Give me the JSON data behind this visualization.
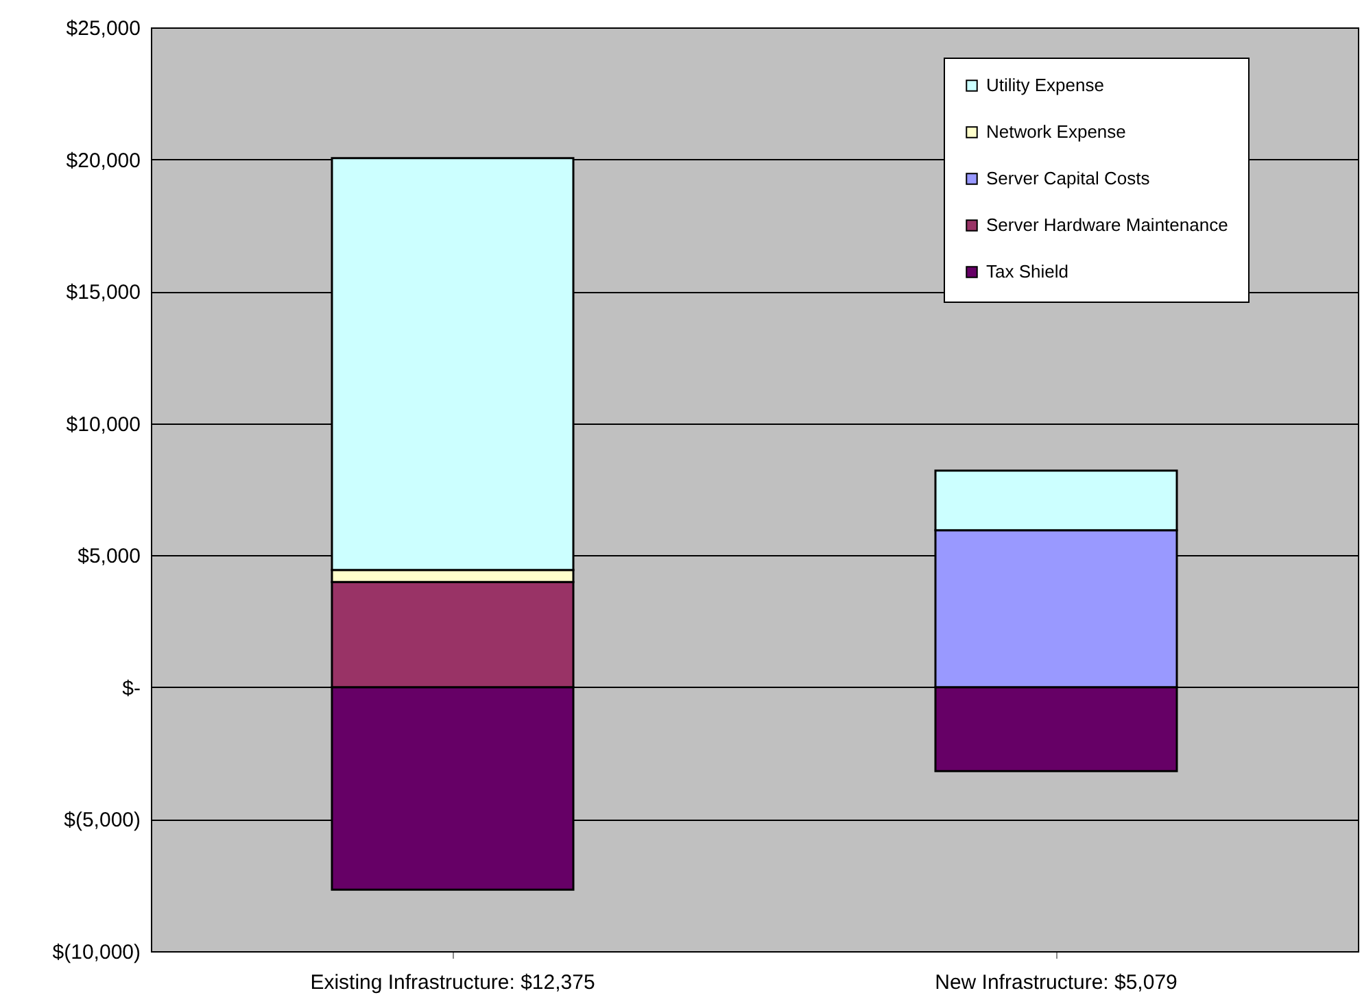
{
  "chart_data": {
    "type": "bar",
    "stacked": true,
    "categories": [
      "Existing Infrastructure:  $12,375",
      "New Infrastructure:   $5,079"
    ],
    "series": [
      {
        "name": "Tax Shield",
        "color": "#660066",
        "values": [
          -7670,
          -3180
        ]
      },
      {
        "name": "Server Hardware Maintenance",
        "color": "#993366",
        "values": [
          3990,
          null
        ]
      },
      {
        "name": "Server Capital Costs",
        "color": "#9999ff",
        "values": [
          0,
          5950
        ]
      },
      {
        "name": "Network Expense",
        "color": "#ffffcc",
        "values": [
          450,
          null
        ]
      },
      {
        "name": "Utility Expense",
        "color": "#ccffff",
        "values": [
          15610,
          2260
        ]
      }
    ],
    "ylim": [
      -10000,
      25000
    ],
    "yticks": [
      {
        "value": -10000,
        "label": "$(10,000)"
      },
      {
        "value": -5000,
        "label": "$(5,000)"
      },
      {
        "value": 0,
        "label": "$-"
      },
      {
        "value": 5000,
        "label": "$5,000"
      },
      {
        "value": 10000,
        "label": "$10,000"
      },
      {
        "value": 15000,
        "label": "$15,000"
      },
      {
        "value": 20000,
        "label": "$20,000"
      },
      {
        "value": 25000,
        "label": "$25,000"
      }
    ],
    "grid": "y",
    "legend": "top right"
  }
}
